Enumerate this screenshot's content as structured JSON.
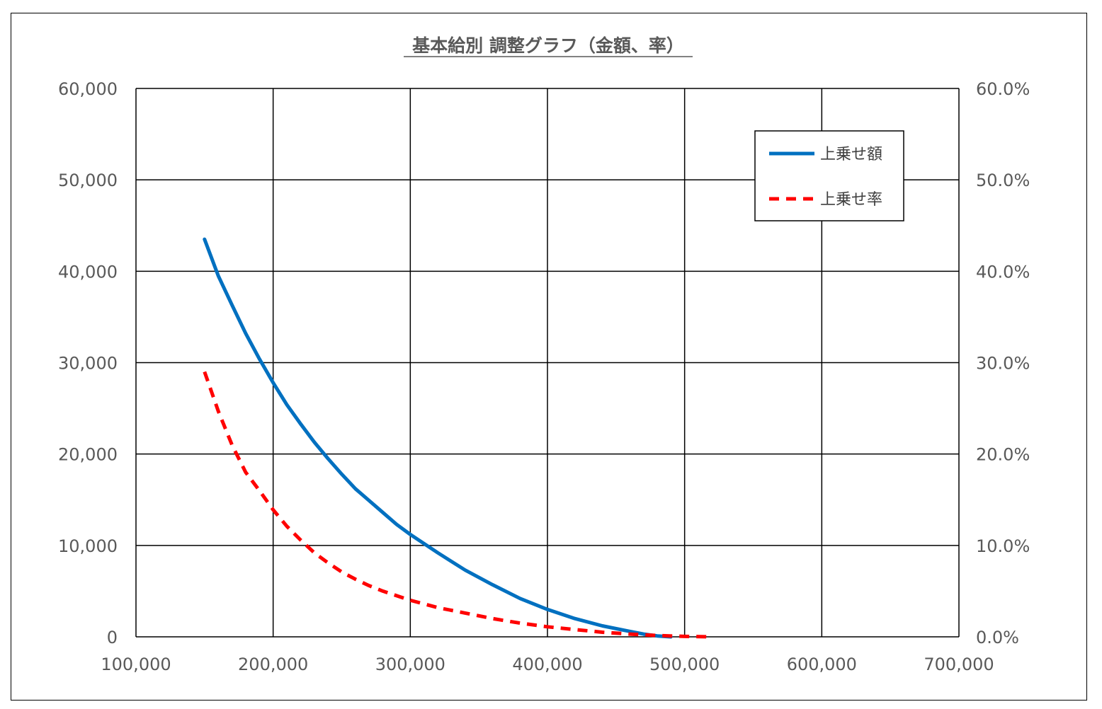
{
  "chart_data": {
    "type": "line",
    "title": "基本給別 調整グラフ（金額、率）",
    "xlabel": "",
    "ylabel": "",
    "y2label": "",
    "xlim": [
      100000,
      700000
    ],
    "ylim": [
      0,
      60000
    ],
    "y2lim": [
      0,
      0.6
    ],
    "x_ticks": [
      "100,000",
      "200,000",
      "300,000",
      "400,000",
      "500,000",
      "600,000",
      "700,000"
    ],
    "y_ticks": [
      "0",
      "10,000",
      "20,000",
      "30,000",
      "40,000",
      "50,000",
      "60,000"
    ],
    "y2_ticks": [
      "0.0%",
      "10.0%",
      "20.0%",
      "30.0%",
      "40.0%",
      "50.0%",
      "60.0%"
    ],
    "grid": true,
    "legend_position": "top-right",
    "series": [
      {
        "name": "上乗せ額",
        "axis": "left",
        "color": "#0070C0",
        "style": "solid",
        "x": [
          150000,
          160000,
          170000,
          180000,
          190000,
          200000,
          210000,
          220000,
          230000,
          240000,
          250000,
          260000,
          270000,
          280000,
          290000,
          300000,
          320000,
          340000,
          360000,
          380000,
          400000,
          420000,
          440000,
          460000,
          470000,
          480000,
          490000
        ],
        "y": [
          43500,
          39500,
          36300,
          33200,
          30400,
          27800,
          25400,
          23300,
          21300,
          19500,
          17800,
          16200,
          14900,
          13600,
          12300,
          11200,
          9200,
          7300,
          5700,
          4200,
          3000,
          2000,
          1200,
          600,
          300,
          100,
          0
        ]
      },
      {
        "name": "上乗せ率",
        "axis": "right",
        "color": "#FF0000",
        "style": "dashed",
        "x": [
          150000,
          160000,
          170000,
          180000,
          190000,
          200000,
          210000,
          220000,
          230000,
          240000,
          250000,
          260000,
          270000,
          280000,
          290000,
          300000,
          320000,
          340000,
          360000,
          380000,
          400000,
          420000,
          440000,
          460000,
          480000,
          500000,
          520000
        ],
        "y": [
          0.29,
          0.247,
          0.21,
          0.18,
          0.16,
          0.139,
          0.121,
          0.106,
          0.092,
          0.081,
          0.071,
          0.063,
          0.056,
          0.05,
          0.045,
          0.04,
          0.032,
          0.026,
          0.02,
          0.015,
          0.011,
          0.008,
          0.005,
          0.003,
          0.0015,
          0.0005,
          0.0
        ]
      }
    ]
  }
}
